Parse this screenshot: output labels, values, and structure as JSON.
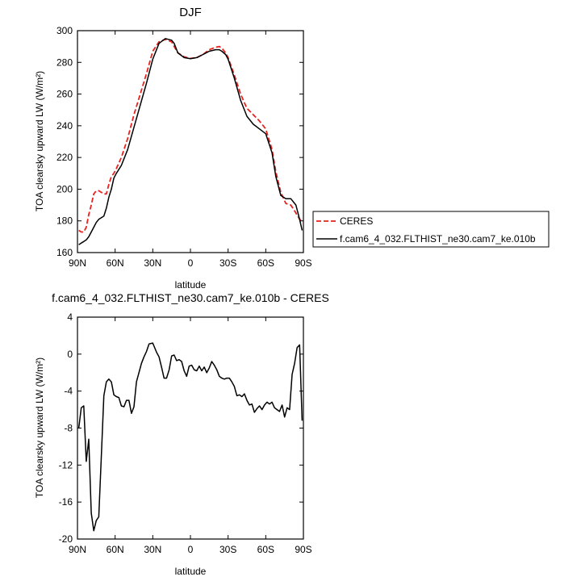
{
  "chart_data": [
    {
      "type": "line",
      "title": "DJF",
      "ylabel": "TOA clearsky upward LW (W/m²)",
      "xlabel": "latitude",
      "x_ticks": [
        90,
        60,
        30,
        0,
        -30,
        -60,
        -90
      ],
      "x_tick_labels": [
        "90N",
        "60N",
        "30N",
        "0",
        "30S",
        "60S",
        "90S"
      ],
      "xlim": [
        90,
        -90
      ],
      "ylim": [
        160,
        300
      ],
      "y_ticks": [
        160,
        180,
        200,
        220,
        240,
        260,
        280,
        300
      ],
      "legend_position": "right",
      "series": [
        {
          "name": "CERES",
          "color": "#e8221e",
          "dash": "dashed",
          "x": [
            89,
            87,
            85,
            83,
            81,
            79,
            77,
            75,
            73,
            71,
            69,
            67,
            65,
            63,
            61,
            59,
            55,
            50,
            45,
            40,
            35,
            30,
            25,
            20,
            15,
            13,
            10,
            5,
            0,
            -5,
            -10,
            -15,
            -20,
            -23,
            -25,
            -28,
            -30,
            -35,
            -40,
            -45,
            -50,
            -55,
            -60,
            -65,
            -68,
            -72,
            -76,
            -80,
            -84,
            -87,
            -89
          ],
          "y": [
            174,
            173,
            173,
            176,
            184,
            190,
            197,
            199,
            199,
            198,
            197,
            197,
            203,
            208,
            210,
            213,
            220,
            232,
            247,
            260,
            273,
            287,
            293,
            294.5,
            293,
            290,
            286,
            283.5,
            282.5,
            283,
            285,
            288,
            289.5,
            290,
            289,
            286,
            283,
            272,
            260,
            251,
            247,
            243,
            238,
            225,
            211,
            198,
            191,
            190,
            185,
            181,
            180
          ]
        },
        {
          "name": "f.cam6_4_032.FLTHIST_ne30.cam7_ke.010b",
          "color": "#000000",
          "dash": "solid",
          "x": [
            89,
            87,
            85,
            83,
            81,
            79,
            77,
            75,
            73,
            71,
            69,
            67,
            65,
            63,
            61,
            59,
            55,
            50,
            45,
            40,
            35,
            30,
            25,
            20,
            15,
            13,
            10,
            5,
            0,
            -5,
            -10,
            -15,
            -20,
            -23,
            -25,
            -28,
            -30,
            -35,
            -40,
            -45,
            -50,
            -55,
            -60,
            -65,
            -68,
            -72,
            -76,
            -80,
            -84,
            -87,
            -89
          ],
          "y": [
            165,
            166,
            167,
            168,
            170,
            173,
            176,
            179,
            181,
            182,
            183,
            188,
            195,
            200,
            207,
            210,
            215,
            225,
            239,
            253,
            267,
            282,
            292,
            295,
            294,
            292,
            286,
            283,
            282.3,
            283,
            285,
            287,
            288,
            288,
            287,
            285,
            282,
            270,
            256,
            246,
            241,
            238,
            235,
            223,
            208,
            196,
            194,
            194,
            190,
            181,
            174
          ]
        }
      ]
    },
    {
      "type": "line",
      "title": "f.cam6_4_032.FLTHIST_ne30.cam7_ke.010b - CERES",
      "ylabel": "TOA clearsky upward LW (W/m²)",
      "xlabel": "latitude",
      "x_ticks": [
        90,
        60,
        30,
        0,
        -30,
        -60,
        -90
      ],
      "x_tick_labels": [
        "90N",
        "60N",
        "30N",
        "0",
        "30S",
        "60S",
        "90S"
      ],
      "xlim": [
        90,
        -90
      ],
      "ylim": [
        -20,
        4
      ],
      "y_ticks": [
        -20,
        -16,
        -12,
        -8,
        -4,
        0,
        4
      ],
      "series": [
        {
          "color": "#000000",
          "dash": "solid",
          "x": [
            89,
            87,
            85,
            83,
            81,
            79,
            77,
            75,
            73,
            71,
            69,
            67,
            65,
            63,
            61,
            59,
            57,
            55,
            53,
            51,
            49,
            47,
            45,
            43,
            41,
            39,
            37,
            35,
            33,
            30,
            27,
            25,
            23,
            21,
            19,
            17,
            15,
            13,
            11,
            9,
            7,
            5,
            3,
            1,
            -1,
            -3,
            -5,
            -7,
            -9,
            -11,
            -13,
            -15,
            -17,
            -19,
            -21,
            -23,
            -25,
            -27,
            -29,
            -31,
            -33,
            -35,
            -37,
            -39,
            -41,
            -43,
            -45,
            -47,
            -49,
            -51,
            -53,
            -55,
            -57,
            -59,
            -61,
            -63,
            -65,
            -67,
            -69,
            -71,
            -73,
            -75,
            -77,
            -79,
            -81,
            -83,
            -85,
            -87,
            -89
          ],
          "y": [
            -8,
            -5.8,
            -5.6,
            -11.6,
            -9.2,
            -17.2,
            -19.1,
            -18,
            -17.6,
            -11,
            -4.5,
            -3,
            -2.7,
            -3,
            -4.4,
            -4.6,
            -4.7,
            -5.6,
            -5.7,
            -5,
            -5,
            -6.4,
            -5.7,
            -3,
            -2,
            -1,
            -0.3,
            0.3,
            1.1,
            1.2,
            0.2,
            -0.3,
            -1.4,
            -2.6,
            -2.6,
            -1.7,
            -0.2,
            -0.1,
            -0.7,
            -0.6,
            -0.8,
            -1.8,
            -2.4,
            -1.3,
            -1.2,
            -1.7,
            -1.8,
            -1.3,
            -1.8,
            -1.4,
            -2,
            -1.5,
            -0.8,
            -1.2,
            -1.7,
            -2.4,
            -2.6,
            -2.7,
            -2.6,
            -2.6,
            -3,
            -3.5,
            -4.5,
            -4.4,
            -4.6,
            -4.3,
            -5,
            -5.5,
            -5.4,
            -6.3,
            -5.9,
            -5.6,
            -6,
            -5.5,
            -5.2,
            -5.4,
            -5.2,
            -5.8,
            -6,
            -6.2,
            -5.5,
            -6.8,
            -5.8,
            -6,
            -2.2,
            -1,
            0.7,
            1,
            -7.2
          ]
        }
      ]
    }
  ]
}
